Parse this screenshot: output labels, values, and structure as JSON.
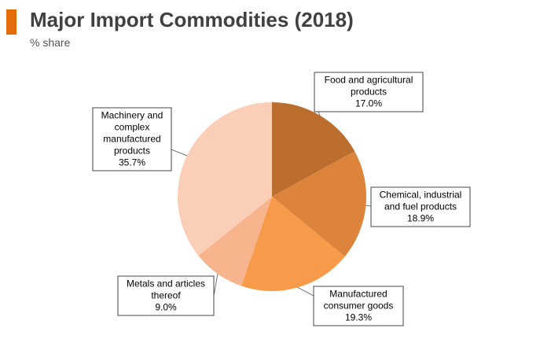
{
  "header": {
    "title": "Major Import Commodities (2018)",
    "subtitle": "% share",
    "accent_color": "#e46c0a"
  },
  "chart_data": {
    "type": "pie",
    "title": "Major Import Commodities (2018)",
    "subtitle": "% share",
    "unit": "%",
    "slices": [
      {
        "label": [
          "Food and agricultural",
          "products"
        ],
        "value": 17.0,
        "value_label": "17.0%",
        "color": "#bc6e2f"
      },
      {
        "label": [
          "Chemical, industrial",
          "and fuel products"
        ],
        "value": 18.9,
        "value_label": "18.9%",
        "color": "#dc843c"
      },
      {
        "label": [
          "Manufactured",
          "consumer goods"
        ],
        "value": 19.3,
        "value_label": "19.3%",
        "color": "#f79a4a"
      },
      {
        "label": [
          "Metals and articles",
          "thereof"
        ],
        "value": 9.0,
        "value_label": "9.0%",
        "color": "#f8b48c"
      },
      {
        "label": [
          "Machinery and",
          "complex",
          "manufactured",
          "products"
        ],
        "value": 35.7,
        "value_label": "35.7%",
        "color": "#fbcfb7"
      }
    ]
  }
}
